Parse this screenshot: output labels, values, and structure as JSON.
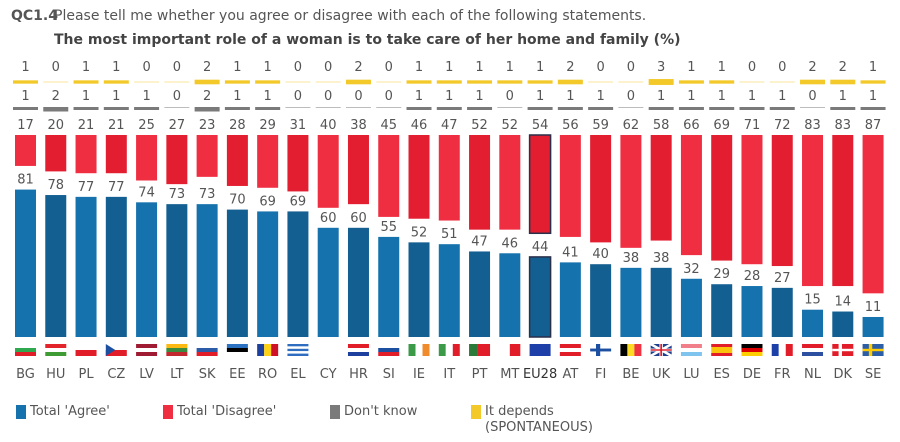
{
  "header": {
    "code": "QC1.4",
    "question": "Please tell me whether you agree or disagree with each of the following statements.",
    "statement": "The most important role of a woman is to take care of her home and family  (%)"
  },
  "colors": {
    "agree": "#1572ad",
    "agree_alt": "#135f91",
    "disagree": "#ef2e42",
    "disagree_alt": "#e21e30",
    "dont_know": "#7a7a7a",
    "depends": "#f2c928",
    "eu_outline": "#2a2f4a"
  },
  "chart_data": {
    "type": "bar",
    "title": "The most important role of a woman is to take care of her home and family (%)",
    "xlabel": "",
    "ylabel": "",
    "ylim": [
      0,
      100
    ],
    "grid": false,
    "legend_position": "bottom",
    "categories": [
      "BG",
      "HU",
      "PL",
      "CZ",
      "LV",
      "LT",
      "SK",
      "EE",
      "RO",
      "EL",
      "CY",
      "HR",
      "SI",
      "IE",
      "IT",
      "PT",
      "MT",
      "EU28",
      "AT",
      "FI",
      "BE",
      "UK",
      "LU",
      "ES",
      "DE",
      "FR",
      "NL",
      "DK",
      "SE"
    ],
    "highlight": "EU28",
    "series": [
      {
        "name": "Total 'Agree'",
        "values": [
          81,
          78,
          77,
          77,
          74,
          73,
          73,
          70,
          69,
          69,
          60,
          60,
          55,
          52,
          51,
          47,
          46,
          44,
          41,
          40,
          38,
          38,
          32,
          29,
          28,
          27,
          15,
          14,
          11
        ]
      },
      {
        "name": "Total 'Disagree'",
        "values": [
          17,
          20,
          21,
          21,
          25,
          27,
          23,
          28,
          29,
          31,
          40,
          38,
          45,
          46,
          47,
          52,
          52,
          54,
          56,
          59,
          62,
          58,
          66,
          69,
          71,
          72,
          83,
          83,
          87
        ]
      },
      {
        "name": "Don't know",
        "values": [
          1,
          2,
          1,
          1,
          1,
          0,
          2,
          1,
          1,
          0,
          0,
          0,
          0,
          1,
          1,
          1,
          0,
          1,
          1,
          1,
          0,
          1,
          1,
          1,
          1,
          1,
          0,
          1,
          1
        ]
      },
      {
        "name": "It depends (SPONTANEOUS)",
        "values": [
          1,
          0,
          1,
          1,
          0,
          0,
          2,
          1,
          1,
          0,
          0,
          2,
          0,
          1,
          1,
          1,
          1,
          1,
          2,
          0,
          0,
          3,
          1,
          1,
          0,
          0,
          2,
          2,
          1
        ]
      }
    ]
  },
  "legend": [
    {
      "label": "Total 'Agree'",
      "color": "#1572ad"
    },
    {
      "label": "Total 'Disagree'",
      "color": "#ef2e42"
    },
    {
      "label": "Don't know",
      "color": "#7a7a7a"
    },
    {
      "label": "It depends\n(SPONTANEOUS)",
      "color": "#f2c928"
    }
  ],
  "flags": {
    "BG": {
      "type": "h",
      "colors": [
        "#ffffff",
        "#2fa84f",
        "#e11d2a"
      ]
    },
    "HU": {
      "type": "h",
      "colors": [
        "#e3242b",
        "#ffffff",
        "#3f9c35"
      ]
    },
    "PL": {
      "type": "h",
      "colors": [
        "#ffffff",
        "#e11d2a"
      ]
    },
    "CZ": {
      "type": "cz",
      "colors": [
        "#ffffff",
        "#e11d2a",
        "#1d4fa1"
      ]
    },
    "LV": {
      "type": "h",
      "colors": [
        "#9e1b32",
        "#ffffff",
        "#9e1b32"
      ]
    },
    "LT": {
      "type": "h",
      "colors": [
        "#fdb913",
        "#3a8a3f",
        "#c1272d"
      ]
    },
    "SK": {
      "type": "h",
      "colors": [
        "#ffffff",
        "#2c5ba8",
        "#e11d2a"
      ]
    },
    "EE": {
      "type": "h",
      "colors": [
        "#2b72c2",
        "#000000",
        "#ffffff"
      ]
    },
    "RO": {
      "type": "v",
      "colors": [
        "#1d3f9e",
        "#fcd116",
        "#ce1126"
      ]
    },
    "EL": {
      "type": "h",
      "colors": [
        "#2f6dc0",
        "#ffffff",
        "#2f6dc0",
        "#ffffff",
        "#2f6dc0"
      ]
    },
    "CY": {
      "type": "h",
      "colors": [
        "#ffffff"
      ]
    },
    "HR": {
      "type": "h",
      "colors": [
        "#e11d2a",
        "#ffffff",
        "#1d3f9e"
      ]
    },
    "SI": {
      "type": "h",
      "colors": [
        "#ffffff",
        "#1d4fa1",
        "#e11d2a"
      ]
    },
    "IE": {
      "type": "v",
      "colors": [
        "#3a9a48",
        "#ffffff",
        "#f08a2b"
      ]
    },
    "IT": {
      "type": "v",
      "colors": [
        "#3a9a48",
        "#ffffff",
        "#e11d2a"
      ]
    },
    "PT": {
      "type": "v2",
      "colors": [
        "#2b7a3a",
        "#e11d2a"
      ]
    },
    "MT": {
      "type": "v",
      "colors": [
        "#ffffff",
        "#e11d2a"
      ]
    },
    "EU28": {
      "type": "h",
      "colors": [
        "#1e3fa8"
      ]
    },
    "AT": {
      "type": "h",
      "colors": [
        "#e11d2a",
        "#ffffff",
        "#e11d2a"
      ]
    },
    "FI": {
      "type": "fi",
      "colors": [
        "#ffffff",
        "#1d4fa1"
      ]
    },
    "BE": {
      "type": "v",
      "colors": [
        "#000000",
        "#fdda24",
        "#ef3340"
      ]
    },
    "UK": {
      "type": "uk",
      "colors": [
        "#1d3f8e",
        "#ffffff",
        "#e11d2a"
      ]
    },
    "LU": {
      "type": "h",
      "colors": [
        "#f07f8a",
        "#ffffff",
        "#7fc4ef"
      ]
    },
    "ES": {
      "type": "h3",
      "colors": [
        "#e11d2a",
        "#fcc30b",
        "#e11d2a"
      ]
    },
    "DE": {
      "type": "h",
      "colors": [
        "#000000",
        "#dd0000",
        "#ffce00"
      ]
    },
    "FR": {
      "type": "v",
      "colors": [
        "#1d3fa8",
        "#ffffff",
        "#e11d2a"
      ]
    },
    "NL": {
      "type": "h",
      "colors": [
        "#e11d2a",
        "#ffffff",
        "#2c4fa0"
      ]
    },
    "DK": {
      "type": "nordic",
      "colors": [
        "#e11d2a",
        "#ffffff"
      ]
    },
    "SE": {
      "type": "nordic",
      "colors": [
        "#2c5ea8",
        "#fecc00"
      ]
    }
  }
}
